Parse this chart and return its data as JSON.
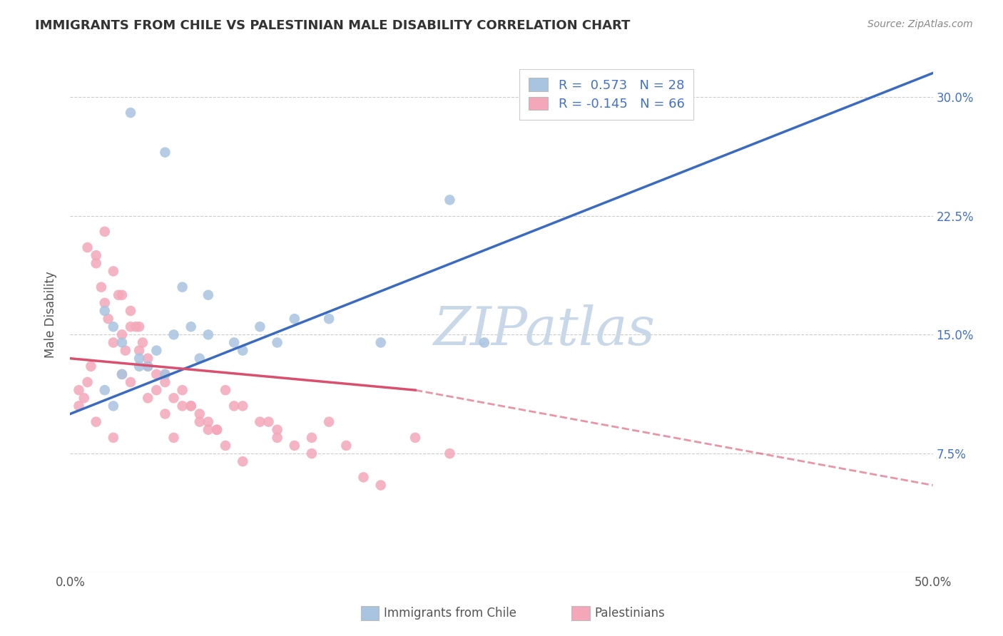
{
  "title": "IMMIGRANTS FROM CHILE VS PALESTINIAN MALE DISABILITY CORRELATION CHART",
  "source_text": "Source: ZipAtlas.com",
  "ylabel": "Male Disability",
  "xlim": [
    0.0,
    50.0
  ],
  "ylim": [
    0.0,
    32.5
  ],
  "xticks": [
    0.0,
    12.5,
    25.0,
    37.5,
    50.0
  ],
  "xtick_labels": [
    "0.0%",
    "",
    "",
    "",
    "50.0%"
  ],
  "yticks_right": [
    7.5,
    15.0,
    22.5,
    30.0
  ],
  "ytick_labels_right": [
    "7.5%",
    "15.0%",
    "22.5%",
    "30.0%"
  ],
  "blue_color": "#a8c4e0",
  "pink_color": "#f4a7b9",
  "blue_line_color": "#3a6bbf",
  "pink_line_color": "#d94f6e",
  "watermark": "ZIPatlas",
  "watermark_color": "#c8d8e8",
  "blue_scatter_x": [
    3.5,
    5.5,
    2.0,
    2.5,
    3.0,
    4.0,
    5.0,
    6.0,
    7.0,
    8.0,
    9.5,
    11.0,
    13.0,
    15.0,
    18.0,
    22.0,
    8.0,
    12.0,
    4.5,
    6.5,
    3.0,
    2.0,
    4.0,
    5.5,
    7.5,
    10.0,
    24.0,
    2.5
  ],
  "blue_scatter_y": [
    29.0,
    26.5,
    16.5,
    15.5,
    14.5,
    13.5,
    14.0,
    15.0,
    15.5,
    15.0,
    14.5,
    15.5,
    16.0,
    16.0,
    14.5,
    23.5,
    17.5,
    14.5,
    13.0,
    18.0,
    12.5,
    11.5,
    13.0,
    12.5,
    13.5,
    14.0,
    14.5,
    10.5
  ],
  "pink_scatter_x": [
    0.5,
    0.8,
    1.0,
    1.2,
    1.5,
    1.8,
    2.0,
    2.2,
    2.5,
    2.8,
    3.0,
    3.2,
    3.5,
    3.8,
    4.0,
    4.2,
    4.5,
    5.0,
    5.5,
    6.0,
    6.5,
    7.0,
    7.5,
    8.0,
    8.5,
    9.0,
    10.0,
    11.0,
    12.0,
    13.0,
    14.0,
    15.0,
    17.0,
    20.0,
    22.0,
    1.0,
    1.5,
    2.0,
    2.5,
    3.0,
    3.5,
    4.0,
    4.5,
    5.0,
    5.5,
    6.0,
    7.0,
    8.0,
    9.0,
    10.0,
    11.5,
    14.0,
    18.0,
    0.5,
    1.5,
    2.5,
    3.5,
    4.5,
    5.5,
    6.5,
    7.5,
    8.5,
    9.5,
    12.0,
    16.0,
    3.0
  ],
  "pink_scatter_y": [
    11.5,
    11.0,
    12.0,
    13.0,
    19.5,
    18.0,
    17.0,
    16.0,
    14.5,
    17.5,
    15.0,
    14.0,
    16.5,
    15.5,
    15.5,
    14.5,
    13.5,
    12.5,
    12.0,
    11.0,
    10.5,
    10.5,
    10.0,
    9.5,
    9.0,
    11.5,
    10.5,
    9.5,
    9.0,
    8.0,
    8.5,
    9.5,
    6.0,
    8.5,
    7.5,
    20.5,
    20.0,
    21.5,
    19.0,
    17.5,
    15.5,
    14.0,
    13.0,
    11.5,
    10.0,
    8.5,
    10.5,
    9.0,
    8.0,
    7.0,
    9.5,
    7.5,
    5.5,
    10.5,
    9.5,
    8.5,
    12.0,
    11.0,
    12.5,
    11.5,
    9.5,
    9.0,
    10.5,
    8.5,
    8.0,
    12.5
  ],
  "blue_trend_x0": 0.0,
  "blue_trend_y0": 10.0,
  "blue_trend_x1": 50.0,
  "blue_trend_y1": 31.5,
  "pink_solid_x0": 0.0,
  "pink_solid_y0": 13.5,
  "pink_solid_x1": 20.0,
  "pink_solid_y1": 11.5,
  "pink_dash_x0": 20.0,
  "pink_dash_y0": 11.5,
  "pink_dash_x1": 50.0,
  "pink_dash_y1": 5.5
}
